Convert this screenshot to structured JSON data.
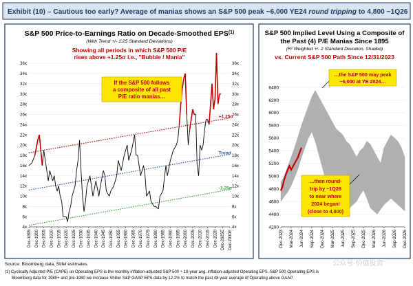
{
  "header": {
    "title_prefix": "Exhibit (10) – Cautious too early? Average of manias shows an S&P 500 peak ~6,000 YE24 ",
    "title_italic": "round tripping",
    "title_suffix": " to 4,800 ~1Q26"
  },
  "colors": {
    "header_bg": "#dbe5f1",
    "header_text": "#1f3864",
    "red": "#c00000",
    "blue": "#2e4fa3",
    "green": "#2e9e2e",
    "bar_bg": "#ffe600",
    "band": "#b0b0b0"
  },
  "footer": {
    "source": "Source: Bloomberg data, Stifel estimates.",
    "note1": "(1)  Cyclically Adjusted P/E (CAPE) on Operating EPS is the monthly inflation-adjusted S&P 500 ÷ 10-year avg. inflation-adjusted Operating EPS. S&P 500 Operating EPS is",
    "note2": "Bloomberg data for 1980+ and pre-1980 we increase Shiller S&P GAAP EPS data by 12.2% to match the past 48 year average of Operating above GAAP.",
    "watermark": "公众号·价值投资"
  },
  "chart_data": [
    {
      "type": "line",
      "title": "S&P 500 Price-to-Earnings Ratio on Decade-Smoothed EPS",
      "title_sup": "(1)",
      "subtitle": "(With Trend +/- 1.25 Standard Deviations)",
      "subtitle_trend": "Trend",
      "annotation_red": [
        "Showing all periods in which S&P 500 P/E",
        "rises above +1.25σ  i.e., \"Bubble / Mania\""
      ],
      "callout": [
        "If the S&P 500 follows",
        "a composite of all past",
        "P/E ratio manias…"
      ],
      "x_tick_labels": [
        "Dec-1895",
        "Dec-1900",
        "Dec-1905",
        "Dec-1910",
        "Dec-1915",
        "Dec-1920",
        "Dec-1925",
        "Dec-1930",
        "Dec-1935",
        "Dec-1940",
        "Dec-1945",
        "Dec-1950",
        "Dec-1955",
        "Dec-1960",
        "Dec-1965",
        "Dec-1970",
        "Dec-1975",
        "Dec-1980",
        "Dec-1985",
        "Dec-1990",
        "Dec-1995",
        "Dec-2000",
        "Dec-2005",
        "Dec-2010",
        "Dec-2015",
        "Dec-2020",
        "Dec-2025E",
        "Dec-2030E"
      ],
      "y_tick_labels": [
        "4x",
        "6x",
        "8x",
        "10x",
        "12x",
        "14x",
        "16x",
        "18x",
        "20x",
        "22x",
        "24x",
        "26x",
        "28x",
        "30x",
        "32x",
        "34x",
        "36x"
      ],
      "ylim": [
        4,
        36
      ],
      "xlim": [
        1895,
        2030
      ],
      "series": [
        {
          "name": "S&P 500 P/E",
          "x": [
            1895,
            1897,
            1899,
            1901,
            1902,
            1904,
            1905,
            1906,
            1908,
            1909,
            1910,
            1911,
            1912,
            1913,
            1914,
            1915,
            1916,
            1917,
            1918,
            1919,
            1920,
            1921,
            1922,
            1923,
            1924,
            1926,
            1927,
            1928,
            1929,
            1930,
            1931,
            1932,
            1933,
            1934,
            1936,
            1937,
            1938,
            1940,
            1942,
            1943,
            1945,
            1946,
            1947,
            1949,
            1950,
            1952,
            1954,
            1955,
            1957,
            1959,
            1961,
            1962,
            1964,
            1966,
            1967,
            1968,
            1970,
            1972,
            1973,
            1974,
            1976,
            1977,
            1979,
            1980,
            1982,
            1983,
            1985,
            1987,
            1988,
            1990,
            1992,
            1994,
            1995,
            1996,
            1997,
            1998,
            1999,
            2000,
            2001,
            2002,
            2003,
            2004,
            2005,
            2006,
            2007,
            2008,
            2009,
            2010,
            2011,
            2012,
            2013,
            2014,
            2015,
            2016,
            2017,
            2018,
            2019,
            2020,
            2021,
            2022,
            2023,
            2024
          ],
          "y": [
            16,
            16.5,
            18,
            21,
            22,
            16,
            19,
            17,
            13,
            15,
            14,
            13,
            14,
            12,
            11,
            12,
            10,
            9,
            6,
            6,
            6,
            5,
            7,
            8,
            10,
            12,
            15,
            17,
            21,
            15,
            10,
            7,
            9,
            12,
            14,
            12,
            10,
            13,
            10,
            12,
            15,
            14,
            11,
            10,
            11,
            12,
            14,
            17,
            15,
            18,
            20,
            17,
            19,
            22,
            18,
            18,
            14,
            16,
            14,
            10,
            11,
            9,
            8,
            8,
            7.5,
            10,
            11,
            16,
            14,
            17,
            19,
            20,
            21,
            24,
            28,
            31,
            33,
            34,
            26,
            20,
            23,
            25,
            27,
            26,
            26,
            16,
            14,
            20,
            19,
            20,
            23,
            25,
            25,
            24,
            28,
            32,
            27,
            29,
            38,
            28,
            30,
            30
          ]
        },
        {
          "name": "+1.25σ",
          "x": [
            1895,
            2030
          ],
          "y": [
            18.5,
            25.3
          ]
        },
        {
          "name": "Trend",
          "x": [
            1895,
            2030
          ],
          "y": [
            11.2,
            18.2
          ]
        },
        {
          "name": "-1.25σ",
          "x": [
            1895,
            2030
          ],
          "y": [
            4.3,
            11.3
          ]
        }
      ],
      "line_labels": [
        "+1.25σ",
        "Trend",
        "-1.25σ"
      ]
    },
    {
      "type": "line",
      "title_lines": [
        "S&P 500 Implied Level Using a Composite of",
        "the Past (4) P/E Manias Since 1895"
      ],
      "subtitle": "(R² Weighted +/- 2 Standard Deviation, Shaded)",
      "subtitle2": "vs. Current S&P 500 Path Since 12/31/2023",
      "callout_top": [
        "…the S&P 500 may peak",
        "~6,000 at YE 2024…"
      ],
      "callout_bottom": [
        "…then round-",
        "trip by ~1Q26",
        "to near where",
        "2024 began!",
        "(close to 4,800)"
      ],
      "x_tick_labels": [
        "Dec-2023",
        "Mar-2024",
        "Jun-2024",
        "Sep-2024",
        "Dec-2024",
        "Mar-2025",
        "Jun-2025",
        "Sep-2025",
        "Dec-2025",
        "Mar-2026",
        "Jun-2026",
        "Sep-2026",
        "Dec-2026"
      ],
      "y_tick_labels": [
        "4200",
        "4400",
        "4600",
        "4800",
        "5000",
        "5200",
        "5400",
        "5600",
        "5800",
        "6000",
        "6200",
        "6400"
      ],
      "ylim": [
        4200,
        6400
      ],
      "xlim": [
        0,
        36
      ],
      "series": [
        {
          "name": "Composite upper band",
          "x": [
            0,
            1,
            2,
            3,
            4,
            5,
            6,
            7,
            8,
            9,
            10,
            11,
            12,
            13,
            14,
            15,
            16,
            17,
            18,
            19,
            20,
            21,
            22,
            23,
            24,
            25,
            26,
            27,
            28,
            29,
            30,
            31,
            32,
            33,
            34,
            35,
            36
          ],
          "y": [
            4900,
            5000,
            5150,
            5300,
            5450,
            5620,
            5800,
            5950,
            6100,
            6250,
            6350,
            6250,
            6150,
            6050,
            5950,
            5850,
            5750,
            5700,
            5650,
            5550,
            5500,
            5400,
            5300,
            5400,
            5450,
            5550,
            5500,
            5400,
            5300,
            5200,
            5450,
            5550,
            5650,
            5600,
            5550,
            5450,
            5300
          ]
        },
        {
          "name": "Composite lower band",
          "x": [
            0,
            1,
            2,
            3,
            4,
            5,
            6,
            7,
            8,
            9,
            10,
            11,
            12,
            13,
            14,
            15,
            16,
            17,
            18,
            19,
            20,
            21,
            22,
            23,
            24,
            25,
            26,
            27,
            28,
            29,
            30,
            31,
            32,
            33,
            34,
            35,
            36
          ],
          "y": [
            4600,
            4680,
            4750,
            4850,
            4980,
            5120,
            5300,
            5450,
            5600,
            5700,
            5550,
            5350,
            5150,
            4950,
            4800,
            4700,
            4600,
            4700,
            4800,
            4700,
            4500,
            4550,
            4600,
            4700,
            4780,
            4650,
            4500,
            4450,
            4400,
            4480,
            4550,
            4600,
            4650,
            4600,
            4550,
            4500,
            4450
          ]
        },
        {
          "name": "Current S&P 500",
          "x": [
            0,
            0.5,
            1,
            1.5,
            2,
            2.5,
            3,
            3.5,
            4,
            4.5,
            5,
            5.5,
            6
          ],
          "y": [
            4770,
            4840,
            4950,
            5030,
            5100,
            5160,
            5100,
            5150,
            5200,
            5250,
            5300,
            5380,
            5450
          ]
        }
      ]
    }
  ]
}
